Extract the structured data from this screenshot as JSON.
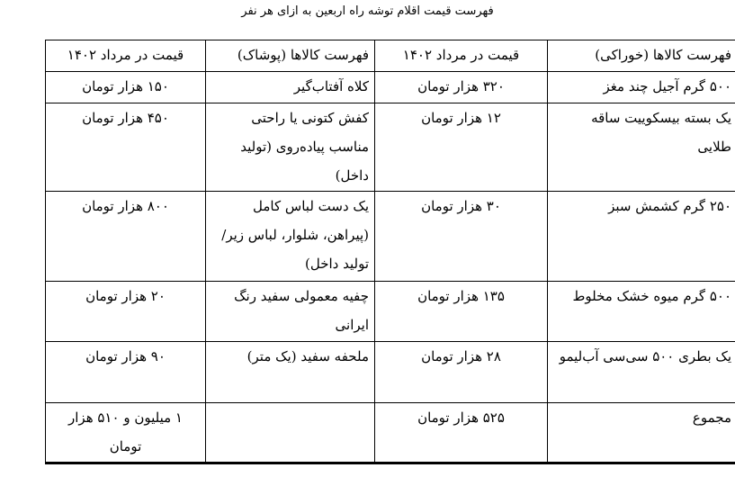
{
  "title": "فهرست قیمت اقلام توشه راه اربعین به ازای هر نفر",
  "headers": [
    "فهرست کالاها (خوراکی)",
    "قیمت در مرداد ۱۴۰۲",
    "فهرست کالاها (پوشاک)",
    "قیمت در مرداد ۱۴۰۲"
  ],
  "rows": [
    [
      "۵۰۰ گرم آجیل چند مغز",
      "۳۲۰ هزار تومان",
      "کلاه آفتاب‌گیر",
      "۱۵۰ هزار تومان"
    ],
    [
      "یک بسته بیسکوییت ساقه طلایی",
      "۱۲ هزار تومان",
      "کفش کتونی یا راحتی مناسب پیاده‌روی (تولید داخل)",
      "۴۵۰ هزار تومان"
    ],
    [
      "۲۵۰ گرم کشمش سبز",
      "۳۰ هزار تومان",
      "یک دست لباس کامل (پیراهن، شلوار، لباس زیر/ تولید داخل)",
      "۸۰۰ هزار تومان"
    ],
    [
      "۵۰۰ گرم میوه خشک مخلوط",
      "۱۳۵ هزار تومان",
      "چفیه معمولی سفید رنگ ایرانی",
      "۲۰ هزار تومان"
    ],
    [
      "یک بطری ۵۰۰ سی‌سی آب‌لیمو",
      "۲۸ هزار تومان",
      "ملحفه سفید (یک متر)",
      "۹۰ هزار تومان"
    ],
    [
      "مجموع",
      "۵۲۵ هزار تومان",
      "",
      "۱ میلیون و ۵۱۰ هزار تومان"
    ]
  ]
}
